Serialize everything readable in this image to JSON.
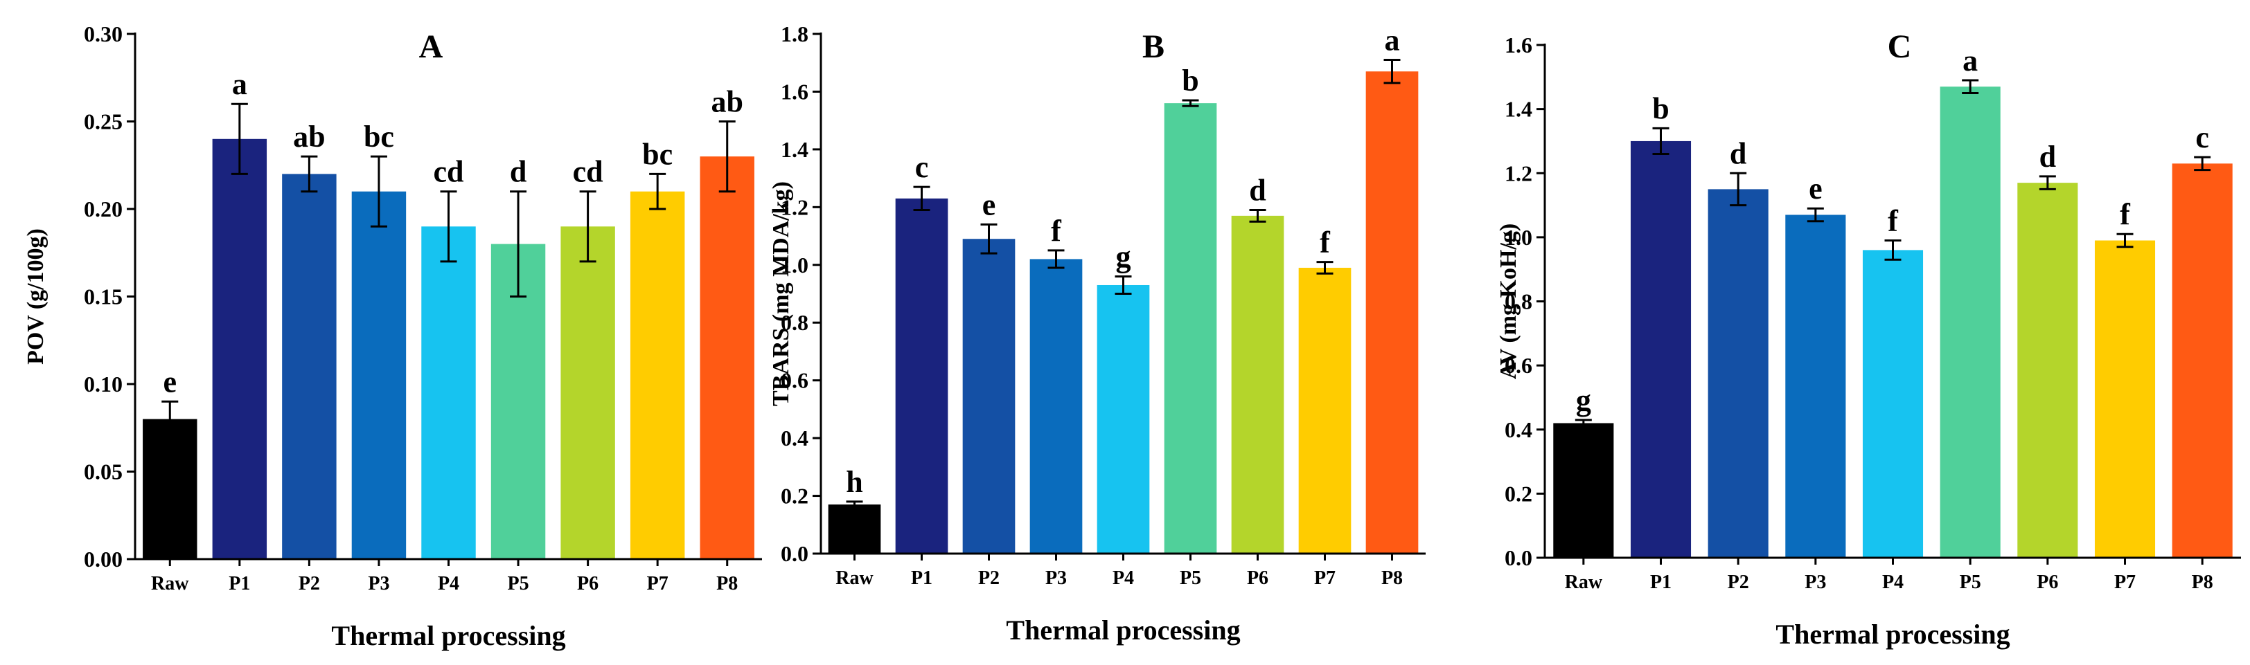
{
  "chart_data": [
    {
      "type": "bar",
      "title": "A",
      "xlabel": "Thermal processing",
      "ylabel": "POV (g/100g)",
      "ylim": [
        0,
        0.3
      ],
      "yticks": [
        "0.00",
        "0.05",
        "0.10",
        "0.15",
        "0.20",
        "0.25",
        "0.30"
      ],
      "categories": [
        "Raw",
        "P1",
        "P2",
        "P3",
        "P4",
        "P5",
        "P6",
        "P7",
        "P8"
      ],
      "values": [
        0.08,
        0.24,
        0.22,
        0.21,
        0.19,
        0.18,
        0.19,
        0.21,
        0.23
      ],
      "errors": [
        0.01,
        0.02,
        0.01,
        0.02,
        0.02,
        0.03,
        0.02,
        0.01,
        0.02
      ],
      "letters": [
        "e",
        "a",
        "ab",
        "bc",
        "cd",
        "d",
        "cd",
        "bc",
        "ab"
      ],
      "colors": [
        "#000000",
        "#1a237e",
        "#1450a5",
        "#0a6cbd",
        "#17c3f0",
        "#50d09a",
        "#b4d52b",
        "#ffcc00",
        "#ff5a14"
      ]
    },
    {
      "type": "bar",
      "title": "B",
      "xlabel": "Thermal processing",
      "ylabel": "TBARS (mg MDA/kg)",
      "ylim": [
        0,
        1.8
      ],
      "yticks": [
        "0.0",
        "0.2",
        "0.4",
        "0.6",
        "0.8",
        "1.0",
        "1.2",
        "1.4",
        "1.6",
        "1.8"
      ],
      "categories": [
        "Raw",
        "P1",
        "P2",
        "P3",
        "P4",
        "P5",
        "P6",
        "P7",
        "P8"
      ],
      "values": [
        0.17,
        1.23,
        1.09,
        1.02,
        0.93,
        1.56,
        1.17,
        0.99,
        1.67
      ],
      "errors": [
        0.01,
        0.04,
        0.05,
        0.03,
        0.03,
        0.01,
        0.02,
        0.02,
        0.04
      ],
      "letters": [
        "h",
        "c",
        "e",
        "f",
        "g",
        "b",
        "d",
        "f",
        "a"
      ],
      "colors": [
        "#000000",
        "#1a237e",
        "#1450a5",
        "#0a6cbd",
        "#17c3f0",
        "#50d09a",
        "#b4d52b",
        "#ffcc00",
        "#ff5a14"
      ]
    },
    {
      "type": "bar",
      "title": "C",
      "xlabel": "Thermal processing",
      "ylabel": "AV (mg KoH/g)",
      "ylim": [
        0,
        1.6
      ],
      "yticks": [
        "0.0",
        "0.2",
        "0.4",
        "0.6",
        "0.8",
        "1.0",
        "1.2",
        "1.4",
        "1.6"
      ],
      "categories": [
        "Raw",
        "P1",
        "P2",
        "P3",
        "P4",
        "P5",
        "P6",
        "P7",
        "P8"
      ],
      "values": [
        0.42,
        1.3,
        1.15,
        1.07,
        0.96,
        1.47,
        1.17,
        0.99,
        1.23
      ],
      "errors": [
        0.01,
        0.04,
        0.05,
        0.02,
        0.03,
        0.02,
        0.02,
        0.02,
        0.02
      ],
      "letters": [
        "g",
        "b",
        "d",
        "e",
        "f",
        "a",
        "d",
        "f",
        "c"
      ],
      "colors": [
        "#000000",
        "#1a237e",
        "#1450a5",
        "#0a6cbd",
        "#17c3f0",
        "#50d09a",
        "#b4d52b",
        "#ffcc00",
        "#ff5a14"
      ]
    }
  ]
}
